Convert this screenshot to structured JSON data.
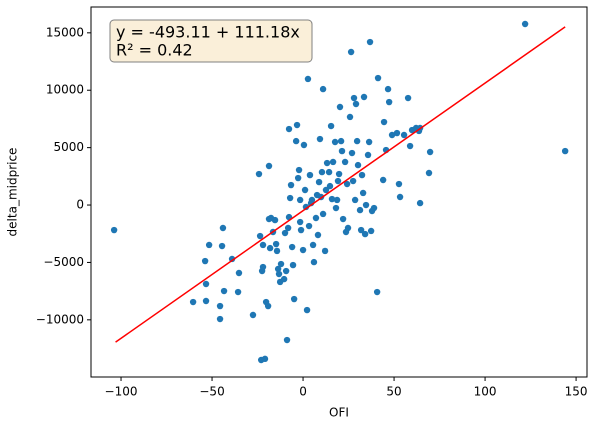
{
  "chart_data": {
    "type": "scatter",
    "xlabel": "OFI",
    "ylabel": "delta_midprice",
    "annotation": [
      "y = -493.11 + 111.18x",
      "R² = 0.42"
    ],
    "xlim": [
      -116.5,
      156
    ],
    "ylim": [
      -14980,
      17250
    ],
    "xticks": [
      {
        "value": -100,
        "label": "−100"
      },
      {
        "value": -50,
        "label": "−50"
      },
      0,
      50,
      100,
      150
    ],
    "yticks": [
      {
        "value": -10000,
        "label": "−10000"
      },
      {
        "value": -5000,
        "label": "−5000"
      },
      0,
      5000,
      10000,
      15000
    ],
    "grid": false,
    "series": [
      {
        "type": "scatter",
        "color": "#1f77b4",
        "x": [
          -103.8,
          122,
          144,
          -60.4,
          -53.3,
          -53.3,
          -53.8,
          -51.6,
          -44.5,
          -44,
          -45.6,
          -45.6,
          -43.4,
          -39,
          -35.7,
          -35.2,
          -27.5,
          -24.2,
          -23.6,
          -23,
          -20.9,
          -22,
          -22,
          -22.5,
          -20.3,
          -19.2,
          -18.7,
          -17.6,
          -18.7,
          -16.5,
          -14.8,
          -14.3,
          -13.7,
          -13.2,
          -12.6,
          -12.1,
          -10.4,
          -9.3,
          -8.8,
          -7.7,
          -7.7,
          -7.1,
          -6.6,
          -6.0,
          -5.5,
          -4.9,
          -3.8,
          -3.3,
          -2.7,
          -2.2,
          -1.6,
          -1.6,
          -1.1,
          0,
          0.5,
          1.1,
          1.6,
          2.2,
          2.7,
          3.3,
          3.8,
          4.9,
          5.5,
          6.0,
          7.1,
          7.7,
          8.2,
          9.3,
          9.9,
          10.4,
          11,
          11,
          12.1,
          12.6,
          13.2,
          14.8,
          15.4,
          15.9,
          16.5,
          17.6,
          18.1,
          19.2,
          19.8,
          20.3,
          20.9,
          22,
          23.1,
          24.2,
          24.7,
          25.8,
          26.4,
          26.9,
          27.5,
          28,
          28.6,
          29.1,
          30.2,
          31.3,
          32.4,
          33.5,
          34.1,
          34.6,
          35.7,
          36.3,
          36.8,
          37.4,
          37.9,
          39,
          40.7,
          41.2,
          44,
          44.5,
          45.6,
          46.7,
          47.3,
          48.9,
          51.6,
          52.7,
          53.3,
          55.5,
          57.7,
          58.8,
          59.9,
          62.1,
          63.7,
          64.3,
          69.8,
          69.2,
          64.3,
          -18.1,
          -15.4,
          -9.9,
          -8.2,
          4.4,
          8.8,
          14.3,
          18.7,
          21.4,
          29.7,
          33,
          31.9,
          23.6
        ],
        "values": [
          -2180,
          15770,
          4700,
          -8450,
          -8360,
          -6880,
          -4880,
          -3480,
          -3570,
          -2000,
          -8800,
          -9930,
          -7490,
          -4700,
          -7580,
          -5920,
          -9580,
          2700,
          -2700,
          -13500,
          -13400,
          -3480,
          -5400,
          -5750,
          -8450,
          -8800,
          -1220,
          -1130,
          3400,
          -2350,
          -3400,
          -4000,
          -5570,
          -6010,
          -6700,
          -5140,
          -6450,
          -5750,
          -11760,
          -1050,
          6620,
          610,
          1740,
          -3660,
          -5230,
          -8190,
          5570,
          6970,
          2350,
          3050,
          440,
          -1480,
          -2180,
          -3920,
          5230,
          1310,
          -170,
          -9150,
          10980,
          -1830,
          2610,
          440,
          -3480,
          -4970,
          -1130,
          870,
          -2610,
          5750,
          700,
          2870,
          10100,
          -780,
          -4000,
          1310,
          3660,
          1650,
          6880,
          520,
          3750,
          5490,
          -260,
          2090,
          2700,
          8540,
          5570,
          -1220,
          3750,
          1830,
          -2000,
          7670,
          13330,
          4530,
          2090,
          9320,
          440,
          8800,
          3480,
          -440,
          2610,
          9410,
          -2530,
          0,
          4360,
          5490,
          14200,
          -2260,
          -520,
          -260,
          -7580,
          11060,
          2180,
          7230,
          4790,
          10100,
          8970,
          6100,
          6270,
          1830,
          700,
          6100,
          9320,
          5140,
          6530,
          6710,
          6450,
          170,
          4620,
          2790,
          6710,
          -3750,
          -1310,
          -2440,
          -2000,
          170,
          2000,
          2870,
          440,
          4700,
          5570,
          1050,
          -2180,
          -2350
        ]
      },
      {
        "type": "line",
        "color": "#ff0000",
        "x": [
          -103,
          144
        ],
        "values": [
          -11944.65,
          15516.81
        ]
      }
    ]
  }
}
